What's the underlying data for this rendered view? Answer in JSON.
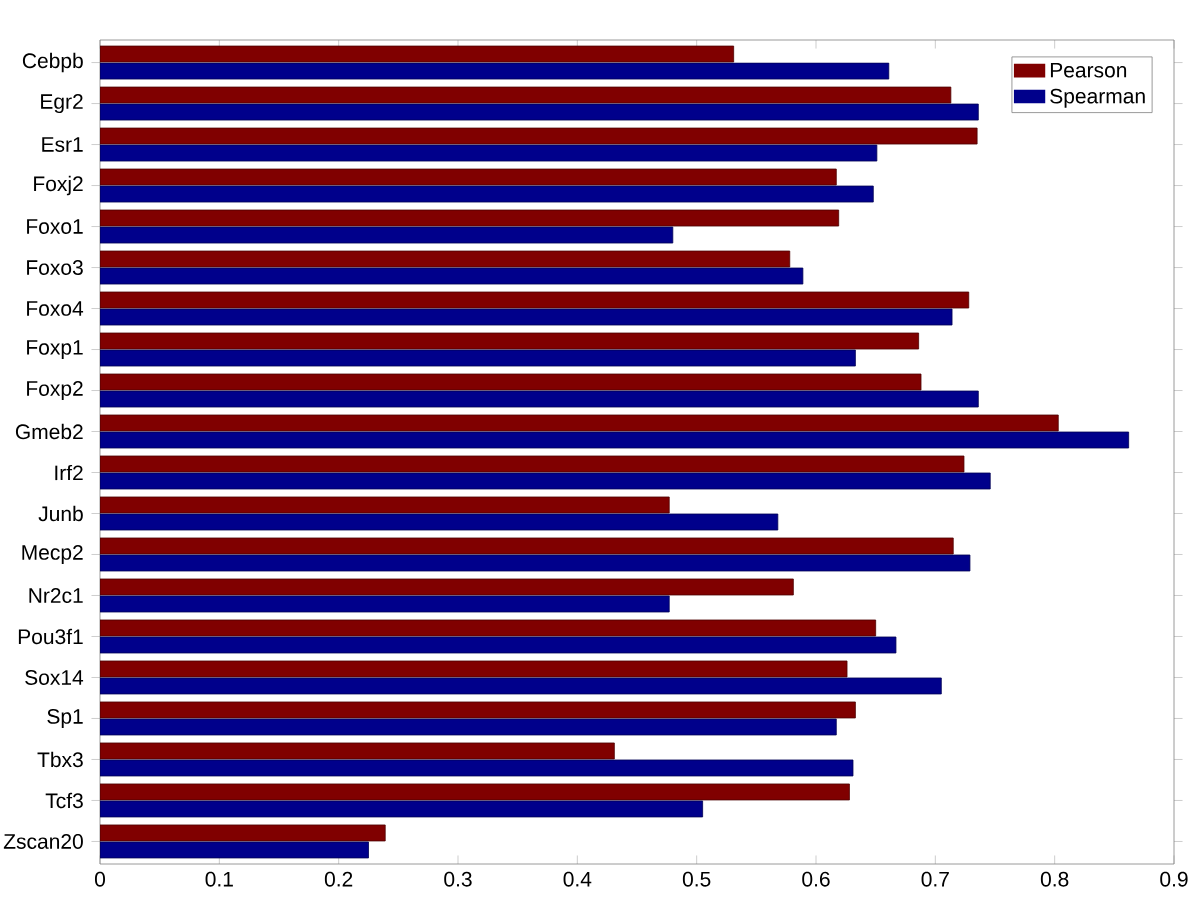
{
  "chart_data": {
    "type": "bar",
    "orientation": "horizontal",
    "categories": [
      "Cebpb",
      "Egr2",
      "Esr1",
      "Foxj2",
      "Foxo1",
      "Foxo3",
      "Foxo4",
      "Foxp1",
      "Foxp2",
      "Gmeb2",
      "Irf2",
      "Junb",
      "Mecp2",
      "Nr2c1",
      "Pou3f1",
      "Sox14",
      "Sp1",
      "Tbx3",
      "Tcf3",
      "Zscan20"
    ],
    "series": [
      {
        "name": "Pearson",
        "color": "#800000",
        "values": [
          0.531,
          0.713,
          0.735,
          0.617,
          0.619,
          0.578,
          0.728,
          0.686,
          0.688,
          0.803,
          0.724,
          0.477,
          0.715,
          0.581,
          0.65,
          0.626,
          0.633,
          0.431,
          0.628,
          0.239
        ]
      },
      {
        "name": "Spearman",
        "color": "#00008b",
        "values": [
          0.661,
          0.736,
          0.651,
          0.648,
          0.48,
          0.589,
          0.714,
          0.633,
          0.736,
          0.862,
          0.746,
          0.568,
          0.729,
          0.477,
          0.667,
          0.705,
          0.617,
          0.631,
          0.505,
          0.225
        ]
      }
    ],
    "xlim": [
      0,
      0.9
    ],
    "xticks": [
      0,
      0.1,
      0.2,
      0.3,
      0.4,
      0.5,
      0.6,
      0.7,
      0.8,
      0.9
    ],
    "legend": "top right",
    "grid": false
  }
}
